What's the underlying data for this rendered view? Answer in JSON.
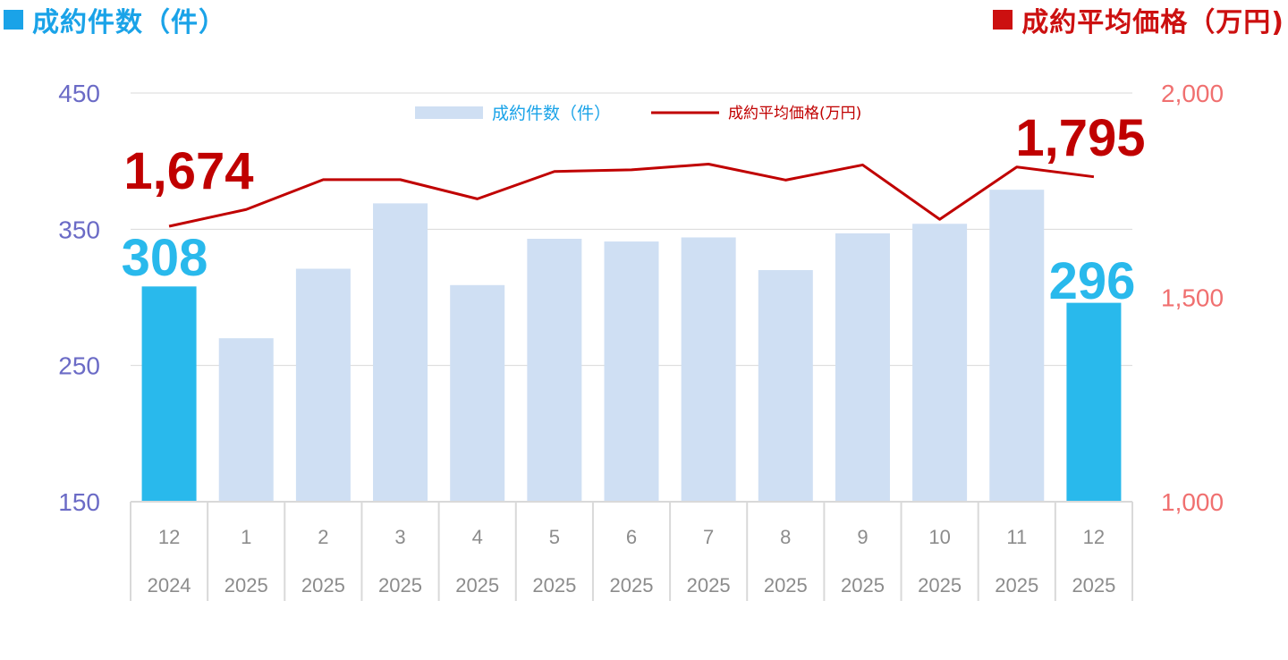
{
  "titles": {
    "left": "成約件数（件）",
    "right": "成約平均価格（万円)"
  },
  "colors": {
    "left_title": "#1aa3e8",
    "right_title": "#cc1010",
    "bar_normal": "#cfdff3",
    "bar_highlight": "#29b9ec",
    "line": "#c00000",
    "left_axis_text": "#6b6bc6",
    "right_axis_text": "#f07070",
    "x_axis_text": "#8c8c8c"
  },
  "chart_data": {
    "type": "bar",
    "categories": [
      {
        "month": "12",
        "year": "2024"
      },
      {
        "month": "1",
        "year": "2025"
      },
      {
        "month": "2",
        "year": "2025"
      },
      {
        "month": "3",
        "year": "2025"
      },
      {
        "month": "4",
        "year": "2025"
      },
      {
        "month": "5",
        "year": "2025"
      },
      {
        "month": "6",
        "year": "2025"
      },
      {
        "month": "7",
        "year": "2025"
      },
      {
        "month": "8",
        "year": "2025"
      },
      {
        "month": "9",
        "year": "2025"
      },
      {
        "month": "10",
        "year": "2025"
      },
      {
        "month": "11",
        "year": "2025"
      },
      {
        "month": "12",
        "year": "2025"
      }
    ],
    "series": [
      {
        "name": "成約件数（件）",
        "type": "bar",
        "axis": "left",
        "values": [
          308,
          270,
          321,
          369,
          309,
          343,
          341,
          344,
          320,
          347,
          354,
          379,
          296
        ],
        "highlight": [
          0,
          12
        ]
      },
      {
        "name": "成約平均価格(万円)",
        "type": "line",
        "axis": "right",
        "values": [
          1674,
          1715,
          1788,
          1788,
          1741,
          1808,
          1812,
          1826,
          1787,
          1824,
          1691,
          1819,
          1795
        ]
      }
    ],
    "left_axis": {
      "min": 150,
      "max": 450,
      "ticks": [
        "150",
        "250",
        "350",
        "450"
      ]
    },
    "right_axis": {
      "min": 1000,
      "max": 2000,
      "ticks": [
        "1,000",
        "1,500",
        "2,000"
      ]
    },
    "annotations": {
      "bar_first": "308",
      "bar_last": "296",
      "line_first": "1,674",
      "line_last": "1,795"
    },
    "grid": true,
    "legend": {
      "placement": "top-center",
      "bar_label": "成約件数（件）",
      "line_label": "成約平均価格(万円)"
    }
  }
}
